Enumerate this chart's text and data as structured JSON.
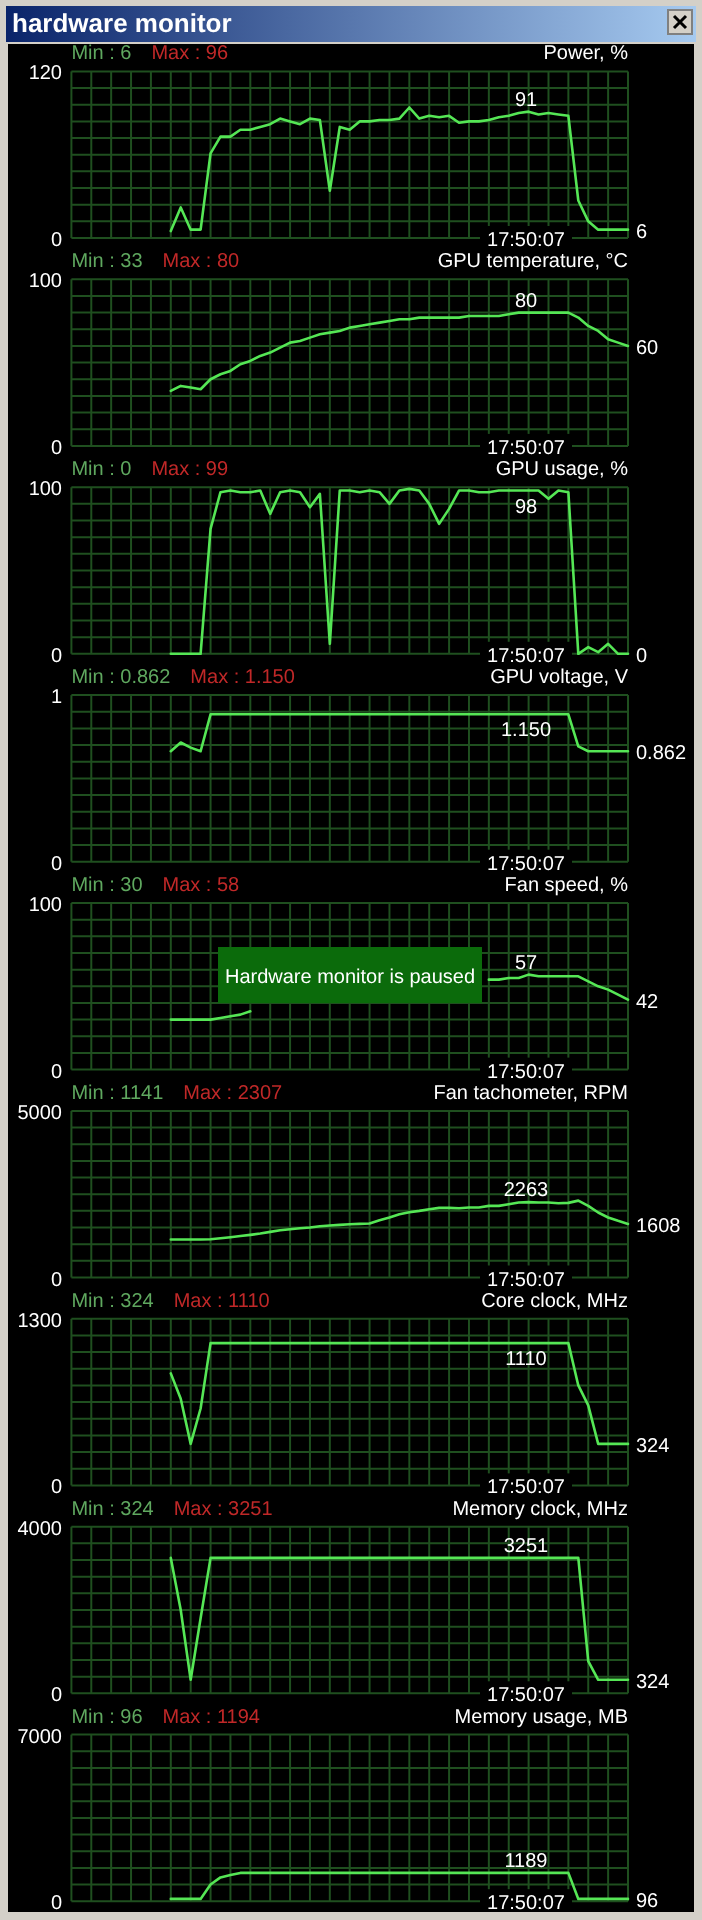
{
  "chart_data": [
    {
      "type": "other",
      "title": "hardware monitor"
    },
    {
      "type": "line",
      "title": "Power, %",
      "categories": [
        null,
        null,
        null,
        null,
        null,
        null,
        null,
        null,
        null,
        null,
        null,
        null,
        null,
        null,
        null,
        null,
        null,
        null,
        null,
        null,
        null,
        null,
        null,
        null,
        null,
        null,
        null,
        null,
        null,
        null,
        null,
        null,
        null,
        null,
        null,
        null,
        null,
        null,
        null,
        null,
        null,
        null,
        null,
        null,
        null,
        null,
        null,
        null,
        null,
        null,
        null,
        null,
        null,
        null,
        null,
        null,
        null
      ],
      "ylim": [
        0,
        120
      ],
      "yticks": [
        0,
        {
          "value": 12,
          "label": null
        },
        {
          "value": 24,
          "label": null
        },
        {
          "value": 36,
          "label": null
        },
        {
          "value": 48,
          "label": null
        },
        {
          "value": 60,
          "label": null
        },
        {
          "value": 72,
          "label": null
        },
        {
          "value": 84,
          "label": null
        },
        {
          "value": 96,
          "label": null
        },
        {
          "value": 108,
          "label": null
        },
        120
      ],
      "grid": true,
      "tick_labels": "y",
      "marker": "none",
      "series": [
        {
          "color": "#55e655",
          "values": [
            null,
            null,
            null,
            null,
            null,
            null,
            null,
            null,
            null,
            null,
            5,
            22,
            6,
            6,
            61,
            73,
            73,
            78,
            78,
            80,
            82,
            86,
            84,
            82,
            86,
            85,
            34,
            80,
            78,
            84,
            84,
            85,
            85,
            86,
            94,
            86,
            88,
            87,
            88,
            83,
            84,
            84,
            85,
            87,
            88,
            90,
            91,
            89,
            90,
            89,
            88,
            27,
            12,
            6,
            6,
            6,
            6
          ]
        }
      ],
      "annotations": [
        "Min : 6",
        "Max : 96",
        "17:50:07",
        "91",
        "6"
      ]
    },
    {
      "type": "line",
      "title": "GPU temperature, °C",
      "categories": [
        null,
        null,
        null,
        null,
        null,
        null,
        null,
        null,
        null,
        null,
        null,
        null,
        null,
        null,
        null,
        null,
        null,
        null,
        null,
        null,
        null,
        null,
        null,
        null,
        null,
        null,
        null,
        null,
        null,
        null,
        null,
        null,
        null,
        null,
        null,
        null,
        null,
        null,
        null,
        null,
        null,
        null,
        null,
        null,
        null,
        null,
        null,
        null,
        null,
        null,
        null,
        null,
        null,
        null,
        null,
        null,
        null
      ],
      "ylim": [
        0,
        100
      ],
      "yticks": [
        0,
        {
          "value": 10,
          "label": null
        },
        {
          "value": 20,
          "label": null
        },
        {
          "value": 30,
          "label": null
        },
        {
          "value": 40,
          "label": null
        },
        {
          "value": 50,
          "label": null
        },
        {
          "value": 60,
          "label": null
        },
        {
          "value": 70,
          "label": null
        },
        {
          "value": 80,
          "label": null
        },
        {
          "value": 90,
          "label": null
        },
        100
      ],
      "grid": true,
      "tick_labels": "y",
      "marker": "none",
      "series": [
        {
          "color": "#55e655",
          "values": [
            null,
            null,
            null,
            null,
            null,
            null,
            null,
            null,
            null,
            null,
            33,
            36,
            35,
            34,
            40,
            43,
            45,
            49,
            51,
            54,
            56,
            59,
            62,
            63,
            65,
            67,
            68,
            69,
            71,
            72,
            73,
            74,
            75,
            76,
            76,
            77,
            77,
            77,
            77,
            77,
            78,
            78,
            78,
            78,
            79,
            80,
            80,
            80,
            80,
            80,
            80,
            77,
            72,
            69,
            64,
            62,
            60
          ]
        }
      ],
      "annotations": [
        "Min : 33",
        "Max : 80",
        "17:50:07",
        "80",
        "60"
      ]
    },
    {
      "type": "line",
      "title": "GPU usage, %",
      "categories": [
        null,
        null,
        null,
        null,
        null,
        null,
        null,
        null,
        null,
        null,
        null,
        null,
        null,
        null,
        null,
        null,
        null,
        null,
        null,
        null,
        null,
        null,
        null,
        null,
        null,
        null,
        null,
        null,
        null,
        null,
        null,
        null,
        null,
        null,
        null,
        null,
        null,
        null,
        null,
        null,
        null,
        null,
        null,
        null,
        null,
        null,
        null,
        null,
        null,
        null,
        null,
        null,
        null,
        null,
        null,
        null,
        null
      ],
      "ylim": [
        0,
        100
      ],
      "yticks": [
        0,
        {
          "value": 10,
          "label": null
        },
        {
          "value": 20,
          "label": null
        },
        {
          "value": 30,
          "label": null
        },
        {
          "value": 40,
          "label": null
        },
        {
          "value": 50,
          "label": null
        },
        {
          "value": 60,
          "label": null
        },
        {
          "value": 70,
          "label": null
        },
        {
          "value": 80,
          "label": null
        },
        {
          "value": 90,
          "label": null
        },
        100
      ],
      "grid": true,
      "tick_labels": "y",
      "marker": "none",
      "series": [
        {
          "color": "#55e655",
          "values": [
            null,
            null,
            null,
            null,
            null,
            null,
            null,
            null,
            null,
            null,
            0,
            0,
            0,
            0,
            75,
            97,
            98,
            97,
            97,
            98,
            84,
            97,
            98,
            97,
            88,
            96,
            6,
            98,
            98,
            97,
            98,
            97,
            90,
            98,
            99,
            98,
            90,
            78,
            87,
            98,
            98,
            97,
            97,
            98,
            98,
            98,
            98,
            98,
            93,
            98,
            97,
            0,
            4,
            1,
            6,
            0,
            0
          ]
        }
      ],
      "annotations": [
        "Min : 0",
        "Max : 99",
        "17:50:07",
        "98",
        "0"
      ]
    },
    {
      "type": "line",
      "title": "GPU voltage, V",
      "categories": [
        null,
        null,
        null,
        null,
        null,
        null,
        null,
        null,
        null,
        null,
        null,
        null,
        null,
        null,
        null,
        null,
        null,
        null,
        null,
        null,
        null,
        null,
        null,
        null,
        null,
        null,
        null,
        null,
        null,
        null,
        null,
        null,
        null,
        null,
        null,
        null,
        null,
        null,
        null,
        null,
        null,
        null,
        null,
        null,
        null,
        null,
        null,
        null,
        null,
        null,
        null,
        null,
        null,
        null,
        null,
        null,
        null
      ],
      "ylim": [
        0,
        1.3
      ],
      "yticks": [
        0,
        {
          "value": 0.13,
          "label": null
        },
        {
          "value": 0.26,
          "label": null
        },
        {
          "value": 0.39,
          "label": null
        },
        {
          "value": 0.52,
          "label": null
        },
        {
          "value": 0.65,
          "label": null
        },
        {
          "value": 0.78,
          "label": null
        },
        {
          "value": 0.91,
          "label": null
        },
        {
          "value": 1.04,
          "label": null
        },
        {
          "value": 1.17,
          "label": null
        },
        {
          "value": 1.3,
          "label": "1"
        }
      ],
      "grid": true,
      "tick_labels": "y",
      "marker": "none",
      "series": [
        {
          "color": "#55e655",
          "values": [
            null,
            null,
            null,
            null,
            null,
            null,
            null,
            null,
            null,
            null,
            0.862,
            0.93,
            0.89,
            0.862,
            1.15,
            1.15,
            1.15,
            1.15,
            1.15,
            1.15,
            1.15,
            1.15,
            1.15,
            1.15,
            1.15,
            1.15,
            1.15,
            1.15,
            1.15,
            1.15,
            1.15,
            1.15,
            1.15,
            1.15,
            1.15,
            1.15,
            1.15,
            1.15,
            1.15,
            1.15,
            1.15,
            1.15,
            1.15,
            1.15,
            1.15,
            1.15,
            1.15,
            1.15,
            1.15,
            1.15,
            1.15,
            0.9,
            0.862,
            0.862,
            0.862,
            0.862,
            0.862
          ]
        }
      ],
      "annotations": [
        "Min : 0.862",
        "Max : 1.150",
        "17:50:07",
        "1.150",
        "0.862"
      ]
    },
    {
      "type": "line",
      "title": "Fan speed, %",
      "categories": [
        null,
        null,
        null,
        null,
        null,
        null,
        null,
        null,
        null,
        null,
        null,
        null,
        null,
        null,
        null,
        null,
        null,
        null,
        null,
        null,
        null,
        null,
        null,
        null,
        null,
        null,
        null,
        null,
        null,
        null,
        null,
        null,
        null,
        null,
        null,
        null,
        null,
        null,
        null,
        null,
        null,
        null,
        null,
        null,
        null,
        null,
        null,
        null,
        null,
        null,
        null,
        null,
        null,
        null,
        null,
        null,
        null
      ],
      "ylim": [
        0,
        100
      ],
      "yticks": [
        0,
        {
          "value": 10,
          "label": null
        },
        {
          "value": 20,
          "label": null
        },
        {
          "value": 30,
          "label": null
        },
        {
          "value": 40,
          "label": null
        },
        {
          "value": 50,
          "label": null
        },
        {
          "value": 60,
          "label": null
        },
        {
          "value": 70,
          "label": null
        },
        {
          "value": 80,
          "label": null
        },
        {
          "value": 90,
          "label": null
        },
        100
      ],
      "grid": true,
      "tick_labels": "y",
      "marker": "none",
      "series": [
        {
          "color": "#55e655",
          "values": [
            null,
            null,
            null,
            null,
            null,
            null,
            null,
            null,
            null,
            null,
            30,
            30,
            30,
            30,
            30,
            31,
            32,
            33,
            35,
            null,
            null,
            null,
            null,
            null,
            null,
            null,
            null,
            null,
            null,
            null,
            null,
            null,
            null,
            null,
            null,
            null,
            null,
            null,
            null,
            null,
            null,
            null,
            54,
            54,
            55,
            55,
            57,
            56,
            56,
            56,
            56,
            56,
            53,
            50,
            48,
            45,
            42
          ]
        }
      ],
      "annotations": [
        "Min : 30",
        "Max : 58",
        "17:50:07",
        "57",
        "42",
        "Hardware monitor is paused"
      ]
    },
    {
      "type": "line",
      "title": "Fan tachometer, RPM",
      "categories": [
        null,
        null,
        null,
        null,
        null,
        null,
        null,
        null,
        null,
        null,
        null,
        null,
        null,
        null,
        null,
        null,
        null,
        null,
        null,
        null,
        null,
        null,
        null,
        null,
        null,
        null,
        null,
        null,
        null,
        null,
        null,
        null,
        null,
        null,
        null,
        null,
        null,
        null,
        null,
        null,
        null,
        null,
        null,
        null,
        null,
        null,
        null,
        null,
        null,
        null,
        null,
        null,
        null,
        null,
        null,
        null,
        null
      ],
      "ylim": [
        0,
        5000
      ],
      "yticks": [
        0,
        {
          "value": 500,
          "label": null
        },
        {
          "value": 1000,
          "label": null
        },
        {
          "value": 1500,
          "label": null
        },
        {
          "value": 2000,
          "label": null
        },
        {
          "value": 2500,
          "label": null
        },
        {
          "value": 3000,
          "label": null
        },
        {
          "value": 3500,
          "label": null
        },
        {
          "value": 4000,
          "label": null
        },
        {
          "value": 4500,
          "label": null
        },
        5000
      ],
      "grid": true,
      "tick_labels": "y",
      "marker": "none",
      "series": [
        {
          "color": "#55e655",
          "values": [
            null,
            null,
            null,
            null,
            null,
            null,
            null,
            null,
            null,
            null,
            1141,
            1141,
            1141,
            1141,
            1150,
            1180,
            1210,
            1245,
            1280,
            1320,
            1370,
            1420,
            1450,
            1480,
            1500,
            1540,
            1560,
            1580,
            1600,
            1610,
            1620,
            1720,
            1800,
            1900,
            1960,
            2000,
            2050,
            2090,
            2090,
            2080,
            2100,
            2100,
            2150,
            2150,
            2200,
            2250,
            2263,
            2250,
            2250,
            2230,
            2240,
            2307,
            2150,
            1950,
            1800,
            1700,
            1608
          ]
        }
      ],
      "annotations": [
        "Min : 1141",
        "Max : 2307",
        "17:50:07",
        "2263",
        "1608"
      ]
    },
    {
      "type": "line",
      "title": "Core clock, MHz",
      "categories": [
        null,
        null,
        null,
        null,
        null,
        null,
        null,
        null,
        null,
        null,
        null,
        null,
        null,
        null,
        null,
        null,
        null,
        null,
        null,
        null,
        null,
        null,
        null,
        null,
        null,
        null,
        null,
        null,
        null,
        null,
        null,
        null,
        null,
        null,
        null,
        null,
        null,
        null,
        null,
        null,
        null,
        null,
        null,
        null,
        null,
        null,
        null,
        null,
        null,
        null,
        null,
        null,
        null,
        null,
        null,
        null,
        null
      ],
      "ylim": [
        0,
        1300
      ],
      "yticks": [
        0,
        {
          "value": 130,
          "label": null
        },
        {
          "value": 260,
          "label": null
        },
        {
          "value": 390,
          "label": null
        },
        {
          "value": 520,
          "label": null
        },
        {
          "value": 650,
          "label": null
        },
        {
          "value": 780,
          "label": null
        },
        {
          "value": 910,
          "label": null
        },
        {
          "value": 1040,
          "label": null
        },
        {
          "value": 1170,
          "label": null
        },
        1300
      ],
      "grid": true,
      "tick_labels": "y",
      "marker": "none",
      "series": [
        {
          "color": "#55e655",
          "values": [
            null,
            null,
            null,
            null,
            null,
            null,
            null,
            null,
            null,
            null,
            874,
            676,
            324,
            600,
            1110,
            1110,
            1110,
            1110,
            1110,
            1110,
            1110,
            1110,
            1110,
            1110,
            1110,
            1110,
            1110,
            1110,
            1110,
            1110,
            1110,
            1110,
            1110,
            1110,
            1110,
            1110,
            1110,
            1110,
            1110,
            1110,
            1110,
            1110,
            1110,
            1110,
            1110,
            1110,
            1110,
            1110,
            1110,
            1110,
            1110,
            780,
            624,
            324,
            324,
            324,
            324
          ]
        }
      ],
      "annotations": [
        "Min : 324",
        "Max : 1110",
        "17:50:07",
        "1110",
        "324"
      ]
    },
    {
      "type": "line",
      "title": "Memory clock, MHz",
      "categories": [
        null,
        null,
        null,
        null,
        null,
        null,
        null,
        null,
        null,
        null,
        null,
        null,
        null,
        null,
        null,
        null,
        null,
        null,
        null,
        null,
        null,
        null,
        null,
        null,
        null,
        null,
        null,
        null,
        null,
        null,
        null,
        null,
        null,
        null,
        null,
        null,
        null,
        null,
        null,
        null,
        null,
        null,
        null,
        null,
        null,
        null,
        null,
        null,
        null,
        null,
        null,
        null,
        null,
        null,
        null,
        null,
        null
      ],
      "ylim": [
        0,
        4000
      ],
      "yticks": [
        0,
        {
          "value": 400,
          "label": null
        },
        {
          "value": 800,
          "label": null
        },
        {
          "value": 1200,
          "label": null
        },
        {
          "value": 1600,
          "label": null
        },
        {
          "value": 2000,
          "label": null
        },
        {
          "value": 2400,
          "label": null
        },
        {
          "value": 2800,
          "label": null
        },
        {
          "value": 3200,
          "label": null
        },
        {
          "value": 3600,
          "label": null
        },
        4000
      ],
      "grid": true,
      "tick_labels": "y",
      "marker": "none",
      "series": [
        {
          "color": "#55e655",
          "values": [
            null,
            null,
            null,
            null,
            null,
            null,
            null,
            null,
            null,
            null,
            3251,
            2000,
            324,
            1800,
            3251,
            3251,
            3251,
            3251,
            3251,
            3251,
            3251,
            3251,
            3251,
            3251,
            3251,
            3251,
            3251,
            3251,
            3251,
            3251,
            3251,
            3251,
            3251,
            3251,
            3251,
            3251,
            3251,
            3251,
            3251,
            3251,
            3251,
            3251,
            3251,
            3251,
            3251,
            3251,
            3251,
            3251,
            3251,
            3251,
            3251,
            3251,
            770,
            324,
            324,
            324,
            324
          ]
        }
      ],
      "annotations": [
        "Min : 324",
        "Max : 3251",
        "17:50:07",
        "3251",
        "324"
      ]
    },
    {
      "type": "line",
      "title": "Memory usage, MB",
      "categories": [
        null,
        null,
        null,
        null,
        null,
        null,
        null,
        null,
        null,
        null,
        null,
        null,
        null,
        null,
        null,
        null,
        null,
        null,
        null,
        null,
        null,
        null,
        null,
        null,
        null,
        null,
        null,
        null,
        null,
        null,
        null,
        null,
        null,
        null,
        null,
        null,
        null,
        null,
        null,
        null,
        null,
        null,
        null,
        null,
        null,
        null,
        null,
        null,
        null,
        null,
        null,
        null,
        null,
        null,
        null,
        null,
        null
      ],
      "ylim": [
        0,
        7000
      ],
      "yticks": [
        0,
        {
          "value": 700,
          "label": null
        },
        {
          "value": 1400,
          "label": null
        },
        {
          "value": 2100,
          "label": null
        },
        {
          "value": 2800,
          "label": null
        },
        {
          "value": 3500,
          "label": null
        },
        {
          "value": 4200,
          "label": null
        },
        {
          "value": 4900,
          "label": null
        },
        {
          "value": 5600,
          "label": null
        },
        {
          "value": 6300,
          "label": null
        },
        7000
      ],
      "grid": true,
      "tick_labels": "y",
      "marker": "none",
      "series": [
        {
          "color": "#55e655",
          "values": [
            null,
            null,
            null,
            null,
            null,
            null,
            null,
            null,
            null,
            null,
            96,
            96,
            96,
            96,
            700,
            1000,
            1100,
            1189,
            1194,
            1189,
            1189,
            1189,
            1189,
            1189,
            1189,
            1189,
            1189,
            1189,
            1189,
            1189,
            1189,
            1189,
            1189,
            1189,
            1189,
            1189,
            1189,
            1189,
            1189,
            1189,
            1189,
            1189,
            1189,
            1189,
            1189,
            1189,
            1189,
            1189,
            1189,
            1189,
            1189,
            96,
            96,
            96,
            96,
            96,
            96
          ]
        }
      ],
      "annotations": [
        "Min : 96",
        "Max : 1194",
        "17:50:07",
        "1189",
        "96"
      ]
    }
  ]
}
